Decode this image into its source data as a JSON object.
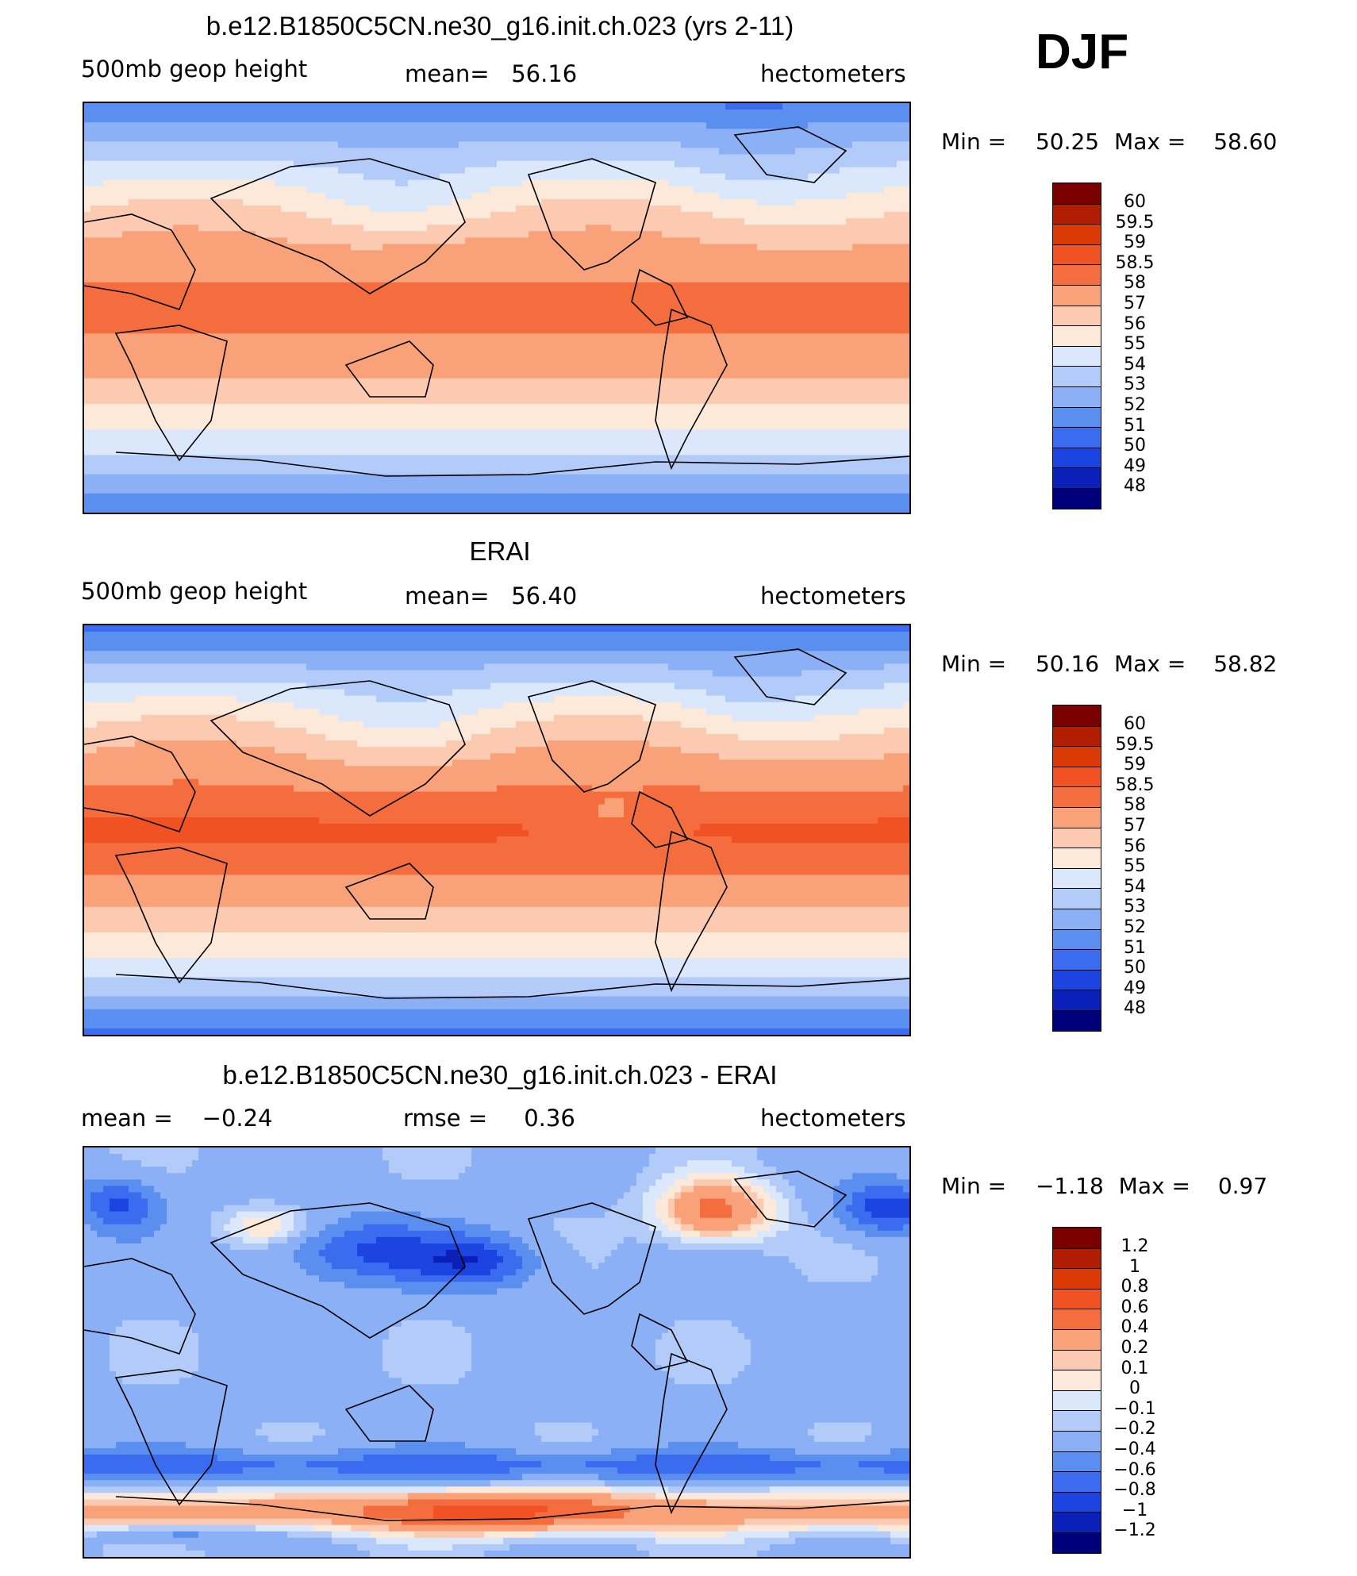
{
  "season": "DJF",
  "chart_data": [
    {
      "type": "heatmap",
      "title": "b.e12.B1850C5CN.ne30_g16.init.ch.023 (yrs 2-11)",
      "variable": "500mb  geop  height",
      "mean_label": "mean=",
      "mean": "56.16",
      "units": "hectometers",
      "min_label": "Min =",
      "min": "50.25",
      "max_label": "Max =",
      "max": "58.60",
      "colorbar_levels": [
        "60",
        "59.5",
        "59",
        "58.5",
        "58",
        "57",
        "56",
        "55",
        "54",
        "53",
        "52",
        "51",
        "50",
        "49",
        "48"
      ],
      "colorbar_colors": [
        "#7a0000",
        "#b01d00",
        "#db3a07",
        "#f05223",
        "#f46d3e",
        "#f9a27a",
        "#fccab0",
        "#fde9d9",
        "#dbe8fb",
        "#b3cbf8",
        "#8cb0f6",
        "#5a8ff0",
        "#3b6cf0",
        "#1c44e0",
        "#0a20b8",
        "#00007a"
      ],
      "field": "model"
    },
    {
      "type": "heatmap",
      "title": "ERAI",
      "variable": "500mb  geop  height",
      "mean_label": "mean=",
      "mean": "56.40",
      "units": "hectometers",
      "min_label": "Min =",
      "min": "50.16",
      "max_label": "Max =",
      "max": "58.82",
      "colorbar_levels": [
        "60",
        "59.5",
        "59",
        "58.5",
        "58",
        "57",
        "56",
        "55",
        "54",
        "53",
        "52",
        "51",
        "50",
        "49",
        "48"
      ],
      "colorbar_colors": [
        "#7a0000",
        "#b01d00",
        "#db3a07",
        "#f05223",
        "#f46d3e",
        "#f9a27a",
        "#fccab0",
        "#fde9d9",
        "#dbe8fb",
        "#b3cbf8",
        "#8cb0f6",
        "#5a8ff0",
        "#3b6cf0",
        "#1c44e0",
        "#0a20b8",
        "#00007a"
      ],
      "field": "obs"
    },
    {
      "type": "heatmap",
      "title": "b.e12.B1850C5CN.ne30_g16.init.ch.023 - ERAI",
      "mean_label": "mean =",
      "mean": "−0.24",
      "rmse_label": "rmse =",
      "rmse": "0.36",
      "units": "hectometers",
      "min_label": "Min =",
      "min": "−1.18",
      "max_label": "Max =",
      "max": "0.97",
      "colorbar_levels": [
        "1.2",
        "1",
        "0.8",
        "0.6",
        "0.4",
        "0.2",
        "0.1",
        "0",
        "−0.1",
        "−0.2",
        "−0.4",
        "−0.6",
        "−0.8",
        "−1",
        "−1.2"
      ],
      "colorbar_colors": [
        "#7a0000",
        "#b01d00",
        "#db3a07",
        "#f05223",
        "#f46d3e",
        "#f9a27a",
        "#fccab0",
        "#fde9d9",
        "#dbe8fb",
        "#b3cbf8",
        "#8cb0f6",
        "#5a8ff0",
        "#3b6cf0",
        "#1c44e0",
        "#0a20b8",
        "#00007a"
      ],
      "field": "diff"
    }
  ]
}
